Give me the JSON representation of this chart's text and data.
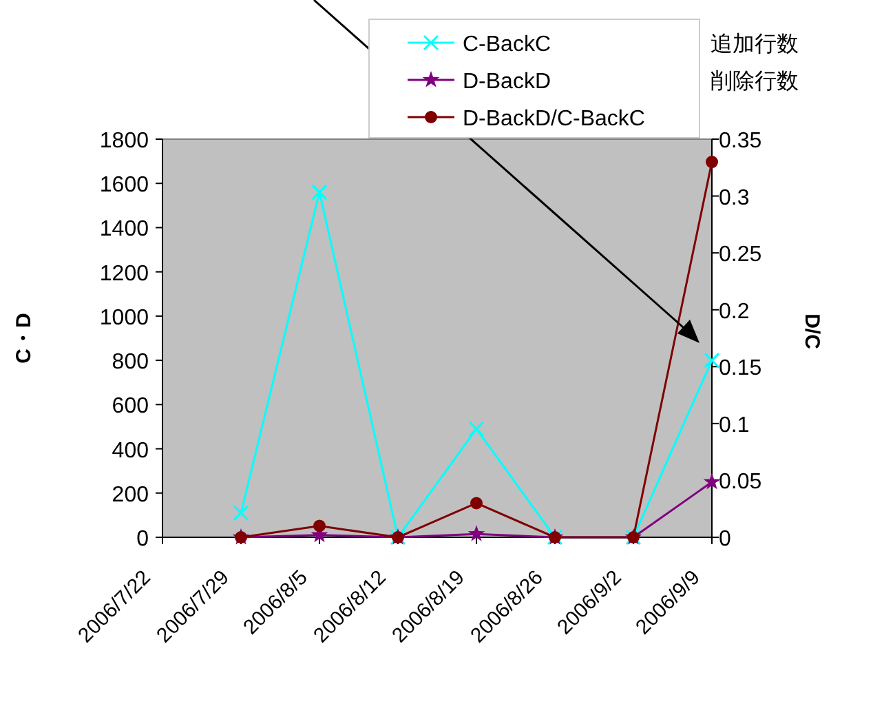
{
  "chart_data": {
    "type": "line",
    "categories": [
      "2006/7/22",
      "2006/7/29",
      "2006/8/5",
      "2006/8/12",
      "2006/8/19",
      "2006/8/26",
      "2006/9/2",
      "2006/9/9"
    ],
    "series": [
      {
        "name": "C-BackC",
        "color": "#00ffff",
        "marker": "cross",
        "values": [
          null,
          110,
          1560,
          0,
          490,
          0,
          0,
          800
        ]
      },
      {
        "name": "D-BackD",
        "color": "#800080",
        "marker": "star",
        "values": [
          null,
          0,
          10,
          0,
          15,
          0,
          0,
          250
        ]
      },
      {
        "name": "D-BackD/C-BackC",
        "color": "#800000",
        "marker": "circle",
        "axis": "y2",
        "values": [
          null,
          0,
          0.01,
          0,
          0.03,
          0,
          0,
          0.33
        ]
      }
    ],
    "ylabel": "C・D",
    "y2label": "D/C",
    "ylim": [
      0,
      1800
    ],
    "yticks": [
      0,
      200,
      400,
      600,
      800,
      1000,
      1200,
      1400,
      1600,
      1800
    ],
    "y2lim": [
      0,
      0.35
    ],
    "y2ticks": [
      0,
      0.05,
      0.1,
      0.15,
      0.2,
      0.25,
      0.3,
      0.35
    ],
    "legend": "top right",
    "grid": false,
    "annotations": [
      "追加行数",
      "削除行数"
    ]
  }
}
